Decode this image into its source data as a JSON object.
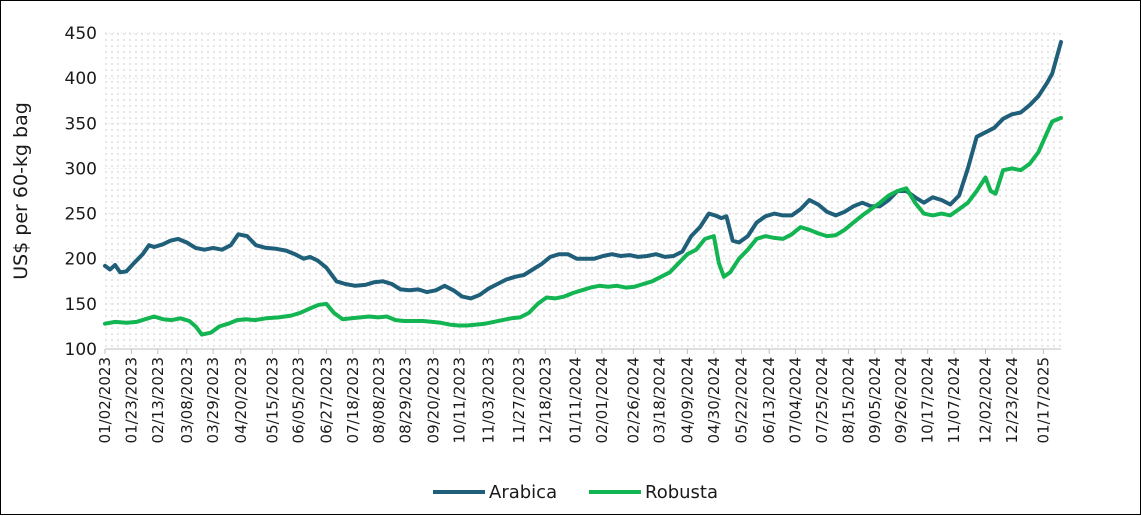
{
  "chart_data": {
    "type": "line",
    "title": "",
    "xlabel": "",
    "ylabel": "US$ per 60-kg bag",
    "ylim": [
      100,
      450
    ],
    "yticks": [
      100,
      150,
      200,
      250,
      300,
      350,
      400,
      450
    ],
    "grid": "dotted",
    "legend_position": "bottom",
    "date_range": [
      "01/02/2023",
      "01/31/2025"
    ],
    "xtick_labels": [
      "01/02/2023",
      "01/23/2023",
      "02/13/2023",
      "03/08/2023",
      "03/29/2023",
      "04/20/2023",
      "05/15/2023",
      "06/05/2023",
      "06/27/2023",
      "07/18/2023",
      "08/08/2023",
      "08/29/2023",
      "09/20/2023",
      "10/11/2023",
      "11/03/2023",
      "11/27/2023",
      "12/18/2023",
      "01/11/2024",
      "02/01/2024",
      "02/26/2024",
      "03/18/2024",
      "04/09/2024",
      "04/30/2024",
      "05/22/2024",
      "06/13/2024",
      "07/04/2024",
      "07/25/2024",
      "08/15/2024",
      "09/05/2024",
      "09/26/2024",
      "10/17/2024",
      "11/07/2024",
      "12/02/2024",
      "12/23/2024",
      "01/17/2025"
    ],
    "series": [
      {
        "name": "Arabica",
        "color": "#1f5f7a",
        "points": [
          [
            "01/02/2023",
            192
          ],
          [
            "01/06/2023",
            188
          ],
          [
            "01/10/2023",
            193
          ],
          [
            "01/14/2023",
            185
          ],
          [
            "01/19/2023",
            186
          ],
          [
            "01/25/2023",
            195
          ],
          [
            "02/01/2023",
            205
          ],
          [
            "02/06/2023",
            215
          ],
          [
            "02/10/2023",
            213
          ],
          [
            "02/17/2023",
            216
          ],
          [
            "02/23/2023",
            220
          ],
          [
            "03/01/2023",
            222
          ],
          [
            "03/08/2023",
            218
          ],
          [
            "03/15/2023",
            212
          ],
          [
            "03/22/2023",
            210
          ],
          [
            "03/29/2023",
            212
          ],
          [
            "04/05/2023",
            210
          ],
          [
            "04/12/2023",
            215
          ],
          [
            "04/18/2023",
            227
          ],
          [
            "04/25/2023",
            225
          ],
          [
            "05/02/2023",
            215
          ],
          [
            "05/10/2023",
            212
          ],
          [
            "05/18/2023",
            211
          ],
          [
            "05/26/2023",
            209
          ],
          [
            "06/02/2023",
            205
          ],
          [
            "06/09/2023",
            200
          ],
          [
            "06/14/2023",
            202
          ],
          [
            "06/20/2023",
            198
          ],
          [
            "06/27/2023",
            190
          ],
          [
            "07/05/2023",
            175
          ],
          [
            "07/12/2023",
            172
          ],
          [
            "07/20/2023",
            170
          ],
          [
            "07/28/2023",
            171
          ],
          [
            "08/04/2023",
            174
          ],
          [
            "08/11/2023",
            175
          ],
          [
            "08/18/2023",
            172
          ],
          [
            "08/25/2023",
            166
          ],
          [
            "09/01/2023",
            165
          ],
          [
            "09/08/2023",
            166
          ],
          [
            "09/15/2023",
            163
          ],
          [
            "09/22/2023",
            165
          ],
          [
            "09/29/2023",
            170
          ],
          [
            "10/06/2023",
            165
          ],
          [
            "10/13/2023",
            158
          ],
          [
            "10/20/2023",
            156
          ],
          [
            "10/27/2023",
            160
          ],
          [
            "11/03/2023",
            167
          ],
          [
            "11/10/2023",
            172
          ],
          [
            "11/17/2023",
            177
          ],
          [
            "11/24/2023",
            180
          ],
          [
            "12/01/2023",
            182
          ],
          [
            "12/08/2023",
            188
          ],
          [
            "12/15/2023",
            194
          ],
          [
            "12/22/2023",
            202
          ],
          [
            "12/29/2023",
            205
          ],
          [
            "01/05/2024",
            205
          ],
          [
            "01/12/2024",
            200
          ],
          [
            "01/19/2024",
            200
          ],
          [
            "01/26/2024",
            200
          ],
          [
            "02/02/2024",
            203
          ],
          [
            "02/09/2024",
            205
          ],
          [
            "02/16/2024",
            203
          ],
          [
            "02/23/2024",
            204
          ],
          [
            "03/01/2024",
            202
          ],
          [
            "03/08/2024",
            203
          ],
          [
            "03/15/2024",
            205
          ],
          [
            "03/22/2024",
            202
          ],
          [
            "03/29/2024",
            203
          ],
          [
            "04/05/2024",
            208
          ],
          [
            "04/12/2024",
            225
          ],
          [
            "04/19/2024",
            235
          ],
          [
            "04/26/2024",
            250
          ],
          [
            "05/01/2024",
            248
          ],
          [
            "05/06/2024",
            245
          ],
          [
            "05/10/2024",
            247
          ],
          [
            "05/15/2024",
            220
          ],
          [
            "05/20/2024",
            218
          ],
          [
            "05/27/2024",
            225
          ],
          [
            "06/03/2024",
            240
          ],
          [
            "06/10/2024",
            247
          ],
          [
            "06/17/2024",
            250
          ],
          [
            "06/24/2024",
            248
          ],
          [
            "07/01/2024",
            248
          ],
          [
            "07/08/2024",
            255
          ],
          [
            "07/15/2024",
            265
          ],
          [
            "07/22/2024",
            260
          ],
          [
            "07/29/2024",
            252
          ],
          [
            "08/05/2024",
            248
          ],
          [
            "08/12/2024",
            252
          ],
          [
            "08/19/2024",
            258
          ],
          [
            "08/26/2024",
            262
          ],
          [
            "09/02/2024",
            258
          ],
          [
            "09/09/2024",
            258
          ],
          [
            "09/16/2024",
            265
          ],
          [
            "09/23/2024",
            275
          ],
          [
            "09/30/2024",
            275
          ],
          [
            "10/07/2024",
            268
          ],
          [
            "10/14/2024",
            262
          ],
          [
            "10/21/2024",
            268
          ],
          [
            "10/28/2024",
            265
          ],
          [
            "11/04/2024",
            260
          ],
          [
            "11/11/2024",
            270
          ],
          [
            "11/18/2024",
            300
          ],
          [
            "11/25/2024",
            335
          ],
          [
            "12/02/2024",
            340
          ],
          [
            "12/09/2024",
            345
          ],
          [
            "12/16/2024",
            355
          ],
          [
            "12/23/2024",
            360
          ],
          [
            "12/30/2024",
            362
          ],
          [
            "01/06/2025",
            370
          ],
          [
            "01/13/2025",
            380
          ],
          [
            "01/20/2025",
            395
          ],
          [
            "01/24/2025",
            405
          ],
          [
            "01/31/2025",
            440
          ]
        ]
      },
      {
        "name": "Robusta",
        "color": "#13b452",
        "points": [
          [
            "01/02/2023",
            128
          ],
          [
            "01/10/2023",
            130
          ],
          [
            "01/19/2023",
            129
          ],
          [
            "01/27/2023",
            130
          ],
          [
            "02/03/2023",
            133
          ],
          [
            "02/10/2023",
            136
          ],
          [
            "02/17/2023",
            133
          ],
          [
            "02/24/2023",
            132
          ],
          [
            "03/03/2023",
            134
          ],
          [
            "03/10/2023",
            131
          ],
          [
            "03/15/2023",
            125
          ],
          [
            "03/20/2023",
            116
          ],
          [
            "03/27/2023",
            118
          ],
          [
            "04/03/2023",
            125
          ],
          [
            "04/10/2023",
            128
          ],
          [
            "04/17/2023",
            132
          ],
          [
            "04/24/2023",
            133
          ],
          [
            "05/01/2023",
            132
          ],
          [
            "05/10/2023",
            134
          ],
          [
            "05/20/2023",
            135
          ],
          [
            "05/30/2023",
            137
          ],
          [
            "06/06/2023",
            140
          ],
          [
            "06/14/2023",
            145
          ],
          [
            "06/21/2023",
            149
          ],
          [
            "06/27/2023",
            150
          ],
          [
            "07/03/2023",
            140
          ],
          [
            "07/10/2023",
            133
          ],
          [
            "07/17/2023",
            134
          ],
          [
            "07/24/2023",
            135
          ],
          [
            "07/31/2023",
            136
          ],
          [
            "08/07/2023",
            135
          ],
          [
            "08/14/2023",
            136
          ],
          [
            "08/21/2023",
            132
          ],
          [
            "08/28/2023",
            131
          ],
          [
            "09/05/2023",
            131
          ],
          [
            "09/12/2023",
            131
          ],
          [
            "09/19/2023",
            130
          ],
          [
            "09/26/2023",
            129
          ],
          [
            "10/03/2023",
            127
          ],
          [
            "10/10/2023",
            126
          ],
          [
            "10/17/2023",
            126
          ],
          [
            "10/24/2023",
            127
          ],
          [
            "10/31/2023",
            128
          ],
          [
            "11/07/2023",
            130
          ],
          [
            "11/14/2023",
            132
          ],
          [
            "11/21/2023",
            134
          ],
          [
            "11/28/2023",
            135
          ],
          [
            "12/05/2023",
            140
          ],
          [
            "12/12/2023",
            150
          ],
          [
            "12/19/2023",
            157
          ],
          [
            "12/26/2023",
            156
          ],
          [
            "01/02/2024",
            158
          ],
          [
            "01/09/2024",
            162
          ],
          [
            "01/16/2024",
            165
          ],
          [
            "01/23/2024",
            168
          ],
          [
            "01/30/2024",
            170
          ],
          [
            "02/06/2024",
            169
          ],
          [
            "02/13/2024",
            170
          ],
          [
            "02/20/2024",
            168
          ],
          [
            "02/27/2024",
            169
          ],
          [
            "03/05/2024",
            172
          ],
          [
            "03/12/2024",
            175
          ],
          [
            "03/19/2024",
            180
          ],
          [
            "03/26/2024",
            185
          ],
          [
            "04/02/2024",
            195
          ],
          [
            "04/09/2024",
            205
          ],
          [
            "04/16/2024",
            210
          ],
          [
            "04/23/2024",
            222
          ],
          [
            "04/30/2024",
            225
          ],
          [
            "05/04/2024",
            195
          ],
          [
            "05/08/2024",
            180
          ],
          [
            "05/13/2024",
            185
          ],
          [
            "05/20/2024",
            200
          ],
          [
            "05/27/2024",
            210
          ],
          [
            "06/03/2024",
            222
          ],
          [
            "06/10/2024",
            225
          ],
          [
            "06/17/2024",
            223
          ],
          [
            "06/24/2024",
            222
          ],
          [
            "07/01/2024",
            227
          ],
          [
            "07/08/2024",
            235
          ],
          [
            "07/15/2024",
            232
          ],
          [
            "07/22/2024",
            228
          ],
          [
            "07/29/2024",
            225
          ],
          [
            "08/05/2024",
            226
          ],
          [
            "08/12/2024",
            232
          ],
          [
            "08/19/2024",
            240
          ],
          [
            "08/26/2024",
            248
          ],
          [
            "09/02/2024",
            255
          ],
          [
            "09/09/2024",
            262
          ],
          [
            "09/16/2024",
            270
          ],
          [
            "09/23/2024",
            275
          ],
          [
            "09/30/2024",
            278
          ],
          [
            "10/07/2024",
            262
          ],
          [
            "10/14/2024",
            250
          ],
          [
            "10/21/2024",
            248
          ],
          [
            "10/28/2024",
            250
          ],
          [
            "11/04/2024",
            248
          ],
          [
            "11/11/2024",
            255
          ],
          [
            "11/18/2024",
            262
          ],
          [
            "11/25/2024",
            275
          ],
          [
            "12/02/2024",
            290
          ],
          [
            "12/06/2024",
            275
          ],
          [
            "12/10/2024",
            272
          ],
          [
            "12/16/2024",
            298
          ],
          [
            "12/23/2024",
            300
          ],
          [
            "12/30/2024",
            298
          ],
          [
            "01/06/2025",
            305
          ],
          [
            "01/13/2025",
            318
          ],
          [
            "01/20/2025",
            340
          ],
          [
            "01/24/2025",
            352
          ],
          [
            "01/31/2025",
            356
          ]
        ]
      }
    ]
  }
}
